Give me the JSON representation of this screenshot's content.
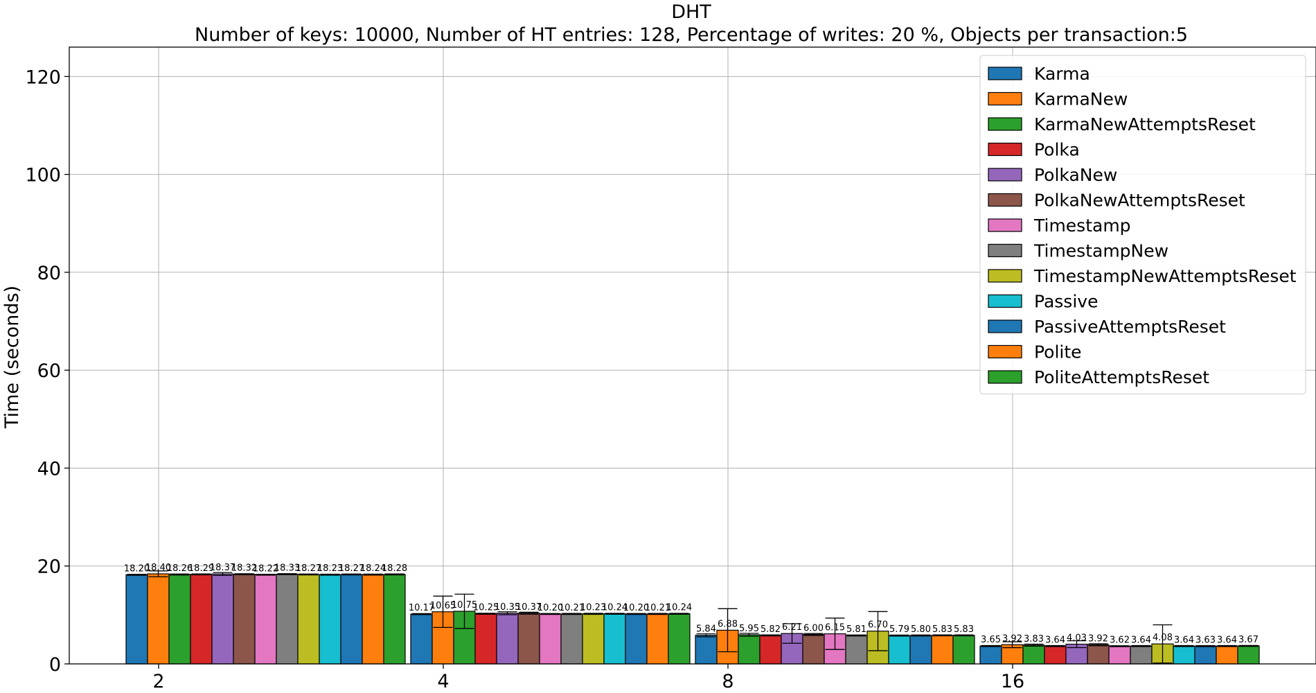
{
  "chart_data": {
    "type": "bar",
    "title": "DHT",
    "subtitle": "Number of keys: 10000, Number of HT entries: 128, Percentage of writes: 20 %, Objects per transaction:5",
    "xlabel": "",
    "ylabel": "Time (seconds)",
    "ylim": [
      0,
      126
    ],
    "yticks": [
      0,
      20,
      40,
      60,
      80,
      100,
      120
    ],
    "categories": [
      "2",
      "4",
      "8",
      "16"
    ],
    "grid": true,
    "legend_position": "top-right",
    "series": [
      {
        "name": "Karma",
        "color": "#1f77b4",
        "values": [
          18.2,
          10.17,
          5.84,
          3.65
        ],
        "errors": [
          0.1,
          0.1,
          0.3,
          0.1
        ]
      },
      {
        "name": "KarmaNew",
        "color": "#ff7f0e",
        "values": [
          18.4,
          10.65,
          6.88,
          3.92
        ],
        "errors": [
          0.6,
          3.2,
          4.4,
          0.6
        ]
      },
      {
        "name": "KarmaNewAttemptsReset",
        "color": "#2ca02c",
        "values": [
          18.26,
          10.75,
          5.95,
          3.83
        ],
        "errors": [
          0.1,
          3.5,
          0.3,
          0.2
        ]
      },
      {
        "name": "Polka",
        "color": "#d62728",
        "values": [
          18.29,
          10.25,
          5.82,
          3.64
        ],
        "errors": [
          0.1,
          0.1,
          0.1,
          0.1
        ]
      },
      {
        "name": "PolkaNew",
        "color": "#9467bd",
        "values": [
          18.37,
          10.35,
          6.21,
          4.03
        ],
        "errors": [
          0.3,
          0.3,
          2.0,
          0.7
        ]
      },
      {
        "name": "PolkaNewAttemptsReset",
        "color": "#8c564b",
        "values": [
          18.32,
          10.37,
          6.0,
          3.92
        ],
        "errors": [
          0.1,
          0.2,
          0.2,
          0.2
        ]
      },
      {
        "name": "Timestamp",
        "color": "#e377c2",
        "values": [
          18.22,
          10.2,
          6.15,
          3.62
        ],
        "errors": [
          0.1,
          0.1,
          3.2,
          0.1
        ]
      },
      {
        "name": "TimestampNew",
        "color": "#7f7f7f",
        "values": [
          18.33,
          10.21,
          5.81,
          3.64
        ],
        "errors": [
          0.1,
          0.1,
          0.1,
          0.1
        ]
      },
      {
        "name": "TimestampNewAttemptsReset",
        "color": "#bcbd22",
        "values": [
          18.27,
          10.23,
          6.7,
          4.08
        ],
        "errors": [
          0.1,
          0.1,
          4.0,
          3.9
        ]
      },
      {
        "name": "Passive",
        "color": "#17becf",
        "values": [
          18.23,
          10.24,
          5.79,
          3.64
        ],
        "errors": [
          0.1,
          0.1,
          0.1,
          0.1
        ]
      },
      {
        "name": "PassiveAttemptsReset",
        "color": "#1f77b4",
        "values": [
          18.27,
          10.2,
          5.8,
          3.63
        ],
        "errors": [
          0.1,
          0.1,
          0.1,
          0.1
        ]
      },
      {
        "name": "Polite",
        "color": "#ff7f0e",
        "values": [
          18.24,
          10.21,
          5.83,
          3.64
        ],
        "errors": [
          0.1,
          0.1,
          0.1,
          0.1
        ]
      },
      {
        "name": "PoliteAttemptsReset",
        "color": "#2ca02c",
        "values": [
          18.28,
          10.24,
          5.83,
          3.67
        ],
        "errors": [
          0.1,
          0.1,
          0.1,
          0.1
        ]
      }
    ]
  }
}
